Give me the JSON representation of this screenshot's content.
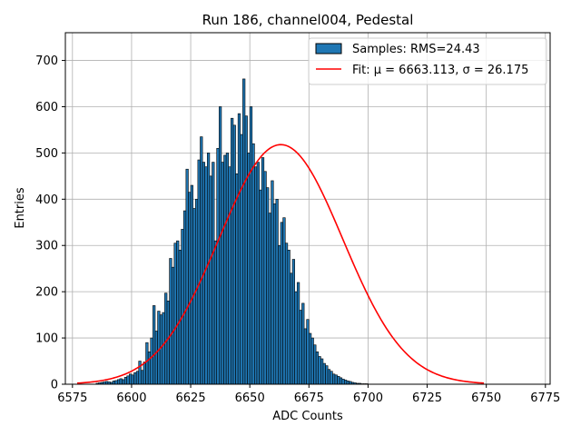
{
  "chart_data": {
    "type": "bar",
    "title": "Run 186, channel004, Pedestal",
    "xlabel": "ADC Counts",
    "ylabel": "Entries",
    "xlim": [
      6572,
      6777
    ],
    "ylim": [
      0,
      760
    ],
    "xticks": [
      6575,
      6600,
      6625,
      6650,
      6675,
      6700,
      6725,
      6750,
      6775
    ],
    "yticks": [
      0,
      100,
      200,
      300,
      400,
      500,
      600,
      700
    ],
    "grid": true,
    "legend_position": "upper-right",
    "colors": {
      "bar": "#1f77b4",
      "edge": "#000000",
      "fit": "#ff0000",
      "grid": "#b0b0b0"
    },
    "histogram": {
      "name": "Samples: RMS=24.43",
      "bin_start": 6585,
      "bin_width": 1,
      "counts": [
        2,
        3,
        4,
        5,
        6,
        5,
        4,
        7,
        8,
        10,
        12,
        10,
        15,
        18,
        22,
        20,
        25,
        28,
        50,
        30,
        48,
        90,
        70,
        100,
        170,
        115,
        158,
        150,
        155,
        197,
        180,
        272,
        253,
        305,
        310,
        290,
        335,
        375,
        465,
        415,
        430,
        380,
        400,
        485,
        535,
        480,
        470,
        500,
        450,
        480,
        310,
        510,
        600,
        480,
        495,
        500,
        470,
        575,
        560,
        455,
        585,
        540,
        660,
        580,
        500,
        600,
        520,
        470,
        480,
        420,
        490,
        460,
        425,
        370,
        440,
        390,
        400,
        300,
        350,
        360,
        305,
        290,
        240,
        270,
        200,
        220,
        160,
        175,
        120,
        140,
        110,
        100,
        85,
        70,
        60,
        55,
        45,
        40,
        32,
        28,
        22,
        20,
        17,
        14,
        11,
        9,
        7,
        6,
        4,
        3,
        2,
        2,
        1,
        1,
        1
      ]
    },
    "fit": {
      "name": "Fit: μ = 6663.113, σ = 26.175",
      "mu": 6663.113,
      "sigma": 26.175,
      "amplitude": 518,
      "x_range": [
        6577,
        6749
      ]
    }
  }
}
